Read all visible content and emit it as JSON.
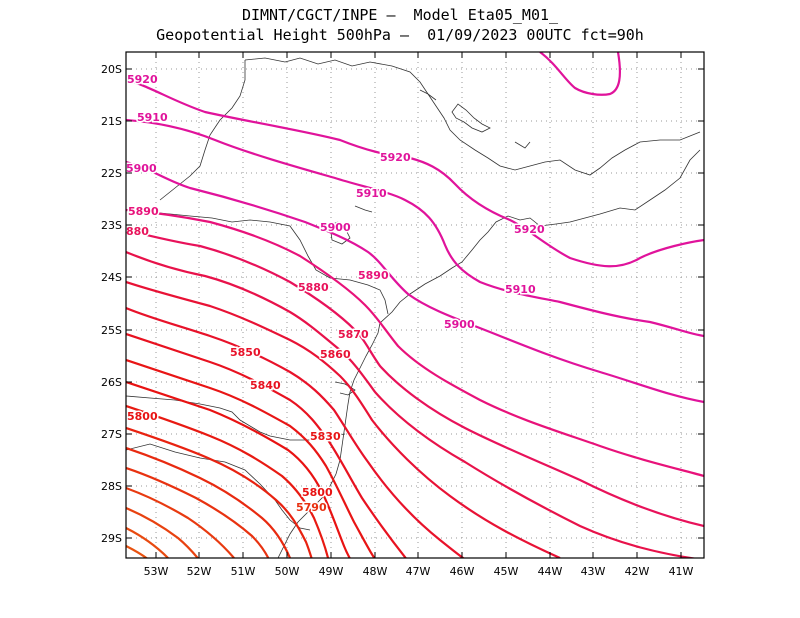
{
  "title": {
    "line1": "DIMNT/CGCT/INPE –  Model Eta05_M01_",
    "line2": "Geopotential Height 500hPa –  01/09/2023 00UTC fct=90h"
  },
  "axes": {
    "lat_labels": [
      "20S",
      "21S",
      "22S",
      "23S",
      "24S",
      "25S",
      "26S",
      "27S",
      "28S",
      "29S"
    ],
    "lon_labels": [
      "53W",
      "52W",
      "51W",
      "50W",
      "49W",
      "48W",
      "47W",
      "46W",
      "45W",
      "44W",
      "43W",
      "42W",
      "41W"
    ],
    "lat_range": [
      -29.4,
      -19.6
    ],
    "lon_range": [
      -53.6,
      -40.5
    ],
    "grid": "dotted"
  },
  "contour_labels": [
    {
      "text": "5920",
      "color": "#e0139b"
    },
    {
      "text": "5910",
      "color": "#e0139b"
    },
    {
      "text": "5900",
      "color": "#e0139b"
    },
    {
      "text": "5890",
      "color": "#e8127a"
    },
    {
      "text": "880",
      "color": "#e8125a"
    },
    {
      "text": "5920",
      "color": "#e0139b"
    },
    {
      "text": "5910",
      "color": "#e0139b"
    },
    {
      "text": "5900",
      "color": "#e0139b"
    },
    {
      "text": "5920",
      "color": "#e0139b"
    },
    {
      "text": "5910",
      "color": "#e0139b"
    },
    {
      "text": "5900",
      "color": "#e0139b"
    },
    {
      "text": "5890",
      "color": "#e8127a"
    },
    {
      "text": "5880",
      "color": "#e8125a"
    },
    {
      "text": "5870",
      "color": "#e8124a"
    },
    {
      "text": "5860",
      "color": "#e81235"
    },
    {
      "text": "5850",
      "color": "#e8122a"
    },
    {
      "text": "5840",
      "color": "#e81220"
    },
    {
      "text": "5830",
      "color": "#e81515"
    },
    {
      "text": "5800",
      "color": "#e81212"
    },
    {
      "text": "5800",
      "color": "#e81212"
    },
    {
      "text": "5790",
      "color": "#e83010"
    }
  ],
  "colors": {
    "high": "#e0139b",
    "mid": "#e8125a",
    "low": "#e83a10",
    "coast": "#333333",
    "grid": "#9a9a9a"
  }
}
